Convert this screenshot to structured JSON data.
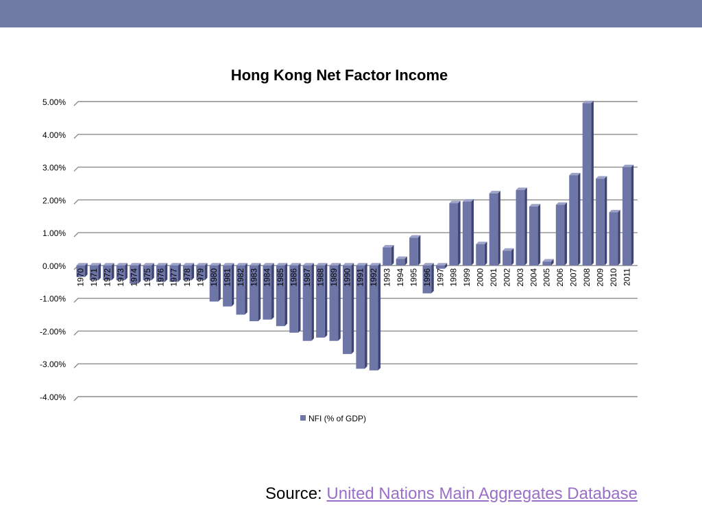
{
  "slide": {
    "source_label": "Source:",
    "source_link_text": "United Nations Main Aggregates Database"
  },
  "colors": {
    "top_band": "#6e7aa1",
    "bar_front": "#6e76a8",
    "bar_side": "#3f4573",
    "bar_top": "#9da3c8",
    "link": "#9a6ec8"
  },
  "chart_data": {
    "type": "bar",
    "title": "Hong Kong Net Factor Income",
    "xlabel": "",
    "ylabel": "",
    "ylim": [
      -4,
      5
    ],
    "y_ticks": [
      "5.00%",
      "4.00%",
      "3.00%",
      "2.00%",
      "1.00%",
      "0.00%",
      "-1.00%",
      "-2.00%",
      "-3.00%",
      "-4.00%"
    ],
    "grid": true,
    "legend_position": "bottom",
    "categories": [
      "1970",
      "1971",
      "1972",
      "1973",
      "1974",
      "1975",
      "1976",
      "1977",
      "1978",
      "1979",
      "1980",
      "1981",
      "1982",
      "1983",
      "1984",
      "1985",
      "1986",
      "1987",
      "1988",
      "1989",
      "1990",
      "1991",
      "1992",
      "1993",
      "1994",
      "1995",
      "1996",
      "1997",
      "1998",
      "1999",
      "2000",
      "2001",
      "2002",
      "2003",
      "2004",
      "2005",
      "2006",
      "2007",
      "2008",
      "2009",
      "2010",
      "2011"
    ],
    "series": [
      {
        "name": "NFI  (% of GDP)",
        "values": [
          -0.35,
          -0.45,
          -0.45,
          -0.45,
          -0.55,
          -0.45,
          -0.5,
          -0.5,
          -0.45,
          -0.45,
          -1.1,
          -1.25,
          -1.5,
          -1.7,
          -1.65,
          -1.85,
          -2.05,
          -2.3,
          -2.2,
          -2.3,
          -2.7,
          -3.15,
          -3.2,
          0.55,
          0.2,
          0.85,
          -0.85,
          -0.1,
          1.9,
          1.95,
          0.65,
          2.2,
          0.45,
          2.3,
          1.8,
          0.12,
          1.85,
          2.75,
          4.95,
          2.65,
          1.62,
          3.0
        ]
      }
    ]
  }
}
